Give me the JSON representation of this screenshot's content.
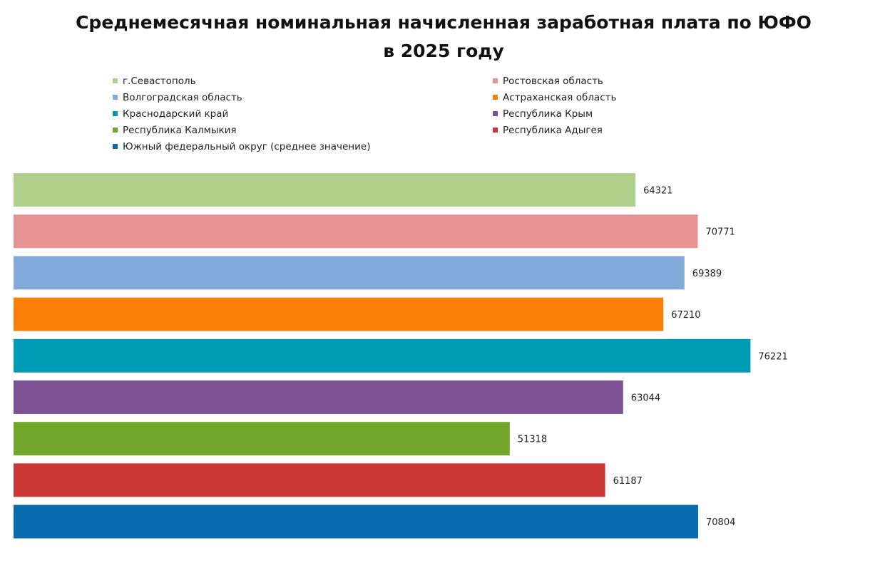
{
  "chart_data": {
    "type": "bar",
    "orientation": "horizontal",
    "title": "Среднемесячная номинальная начисленная заработная плата по ЮФО в 2025 году",
    "xlabel": "",
    "ylabel": "",
    "xlim": [
      0,
      86000
    ],
    "grid": false,
    "legend_position": "top",
    "series": [
      {
        "name": "г.Севастополь",
        "value": 64321,
        "color": "#AFD08B"
      },
      {
        "name": "Ростовская область",
        "value": 70771,
        "color": "#E79393"
      },
      {
        "name": "Волгоградская область",
        "value": 69389,
        "color": "#82A9D9"
      },
      {
        "name": "Астраханская область",
        "value": 67210,
        "color": "#FB7E06"
      },
      {
        "name": "Краснодарский край",
        "value": 76221,
        "color": "#009BB5"
      },
      {
        "name": "Республика Крым",
        "value": 63044,
        "color": "#7E5395"
      },
      {
        "name": "Республика Калмыкия",
        "value": 51318,
        "color": "#72A62B"
      },
      {
        "name": "Республика Адыгея",
        "value": 61187,
        "color": "#CB3734"
      },
      {
        "name": "Южный федеральный округ (среднее значение)",
        "value": 70804,
        "color": "#0A6CAF"
      }
    ]
  }
}
